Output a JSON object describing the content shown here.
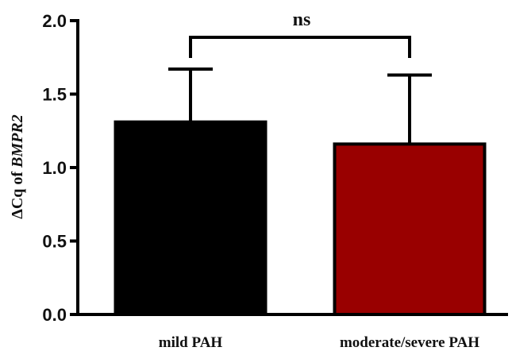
{
  "chart_data": {
    "type": "bar",
    "categories": [
      "mild PAH",
      "moderate/severe PAH"
    ],
    "values": [
      1.31,
      1.16
    ],
    "errors": [
      0.36,
      0.47
    ],
    "colors": [
      "#000000",
      "#990000"
    ],
    "ylabel": {
      "prefix": "ΔCq of ",
      "gene": "BMPR2"
    },
    "ylim": [
      0,
      2.0
    ],
    "yticks": [
      "0.0",
      "0.5",
      "1.0",
      "1.5",
      "2.0"
    ],
    "ytick_values": [
      0,
      0.5,
      1.0,
      1.5,
      2.0
    ],
    "significance": {
      "label": "ns",
      "between": [
        0,
        1
      ]
    },
    "grid": false,
    "legend": "none"
  }
}
